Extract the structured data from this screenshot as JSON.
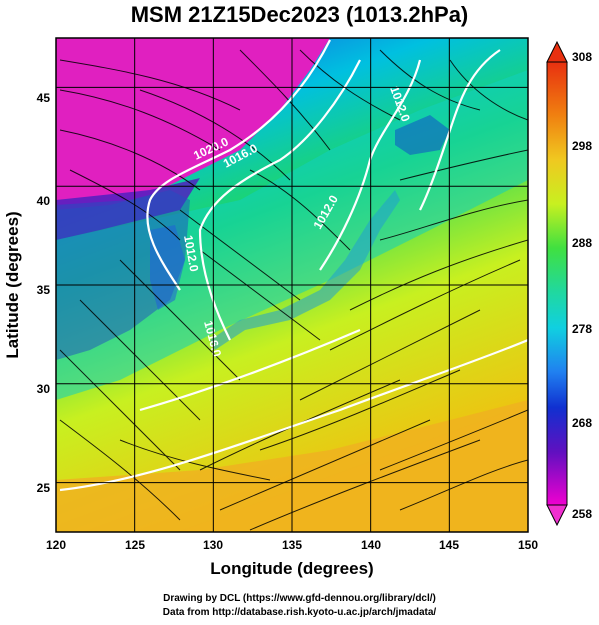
{
  "title": "MSM 21Z15Dec2023 (1013.2hPa)",
  "xlabel": "Longitude (degrees)",
  "ylabel": "Latitude  (degrees)",
  "x_ticks": [
    "120",
    "125",
    "130",
    "135",
    "140",
    "145",
    "150"
  ],
  "y_ticks": [
    "25",
    "30",
    "35",
    "40",
    "45"
  ],
  "colorbar_ticks": [
    "308",
    "298",
    "288",
    "278",
    "268",
    "258"
  ],
  "contour_labels": [
    "1020.0",
    "1016.0",
    "1012.0",
    "1012.0",
    "1012.0",
    "1016.0"
  ],
  "credit_drawing": "Drawing by DCL (https://www.gfd-dennou.org/library/dcl/)",
  "credit_data": "Data from http://database.rish.kyoto-u.ac.jp/arch/jmadata/",
  "map_data": {
    "lon_range": [
      120,
      150
    ],
    "lat_range": [
      22.5,
      47.5
    ],
    "colorbar_range": [
      258,
      308
    ],
    "grid_lon": [
      125,
      130,
      135,
      140,
      145
    ],
    "grid_lat": [
      25,
      30,
      35,
      40,
      45
    ]
  }
}
